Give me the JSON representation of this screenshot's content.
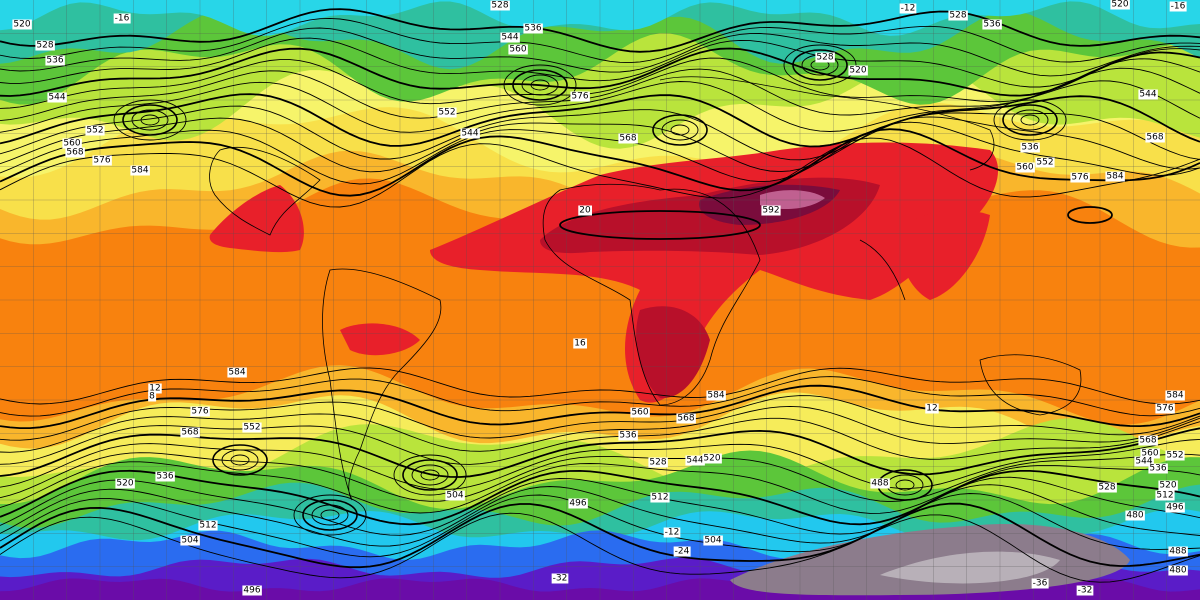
{
  "map": {
    "contour_labels": [
      "528",
      "536",
      "544",
      "560",
      "552",
      "544",
      "576",
      "568",
      "520",
      "528",
      "536",
      "544",
      "552",
      "560",
      "568",
      "576",
      "584",
      "592",
      "584",
      "576",
      "568",
      "552",
      "520",
      "536",
      "504",
      "496",
      "512",
      "504",
      "496",
      "584",
      "560",
      "568",
      "536",
      "528",
      "544",
      "520",
      "512",
      "488",
      "504",
      "528",
      "536",
      "528",
      "520",
      "536",
      "552",
      "560",
      "576",
      "584",
      "568",
      "544",
      "520",
      "584",
      "576",
      "568",
      "560",
      "552",
      "544",
      "536",
      "528",
      "520",
      "512",
      "496",
      "480",
      "488",
      "480"
    ],
    "temperature_labels": [
      "-16",
      "-12",
      "-16",
      "-32",
      "-36",
      "-32",
      "12",
      "16",
      "12",
      "-12",
      "-24",
      "8",
      "20"
    ]
  }
}
